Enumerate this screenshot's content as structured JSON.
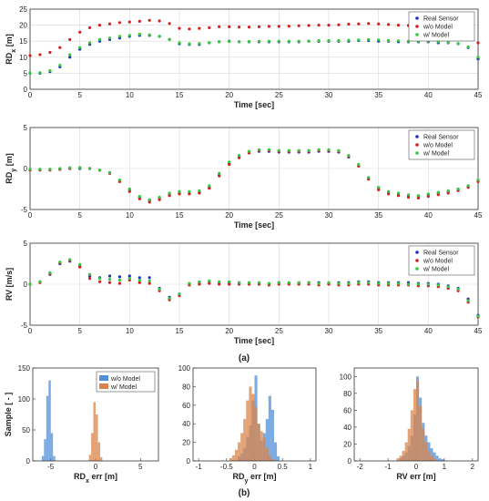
{
  "figure": {
    "label_a": "(a)",
    "label_b": "(b)"
  },
  "colors": {
    "real_sensor": "#1f2fbf",
    "wo_model": "#d21f1f",
    "w_model": "#33c93a",
    "hist_wo_model": "#4f8fd6",
    "hist_w_model": "#d9844a",
    "grid": "#d9d9d9",
    "frame": "#333333"
  },
  "chart_data": [
    {
      "type": "scatter",
      "xlabel": "Time [sec]",
      "ylabel": "RDx [m]",
      "ylabel_main": "RD",
      "ylabel_sub": "x",
      "ylabel_unit": " [m]",
      "xlim": [
        0,
        45
      ],
      "ylim": [
        0,
        25
      ],
      "xticks": [
        0,
        5,
        10,
        15,
        20,
        25,
        30,
        35,
        40,
        45
      ],
      "yticks": [
        0,
        5,
        10,
        15,
        20,
        25
      ],
      "grid": true,
      "legend_position": "top-right",
      "x": [
        0,
        1,
        2,
        3,
        4,
        5,
        6,
        7,
        8,
        9,
        10,
        11,
        12,
        13,
        14,
        15,
        16,
        17,
        18,
        19,
        20,
        21,
        22,
        23,
        24,
        25,
        26,
        27,
        28,
        29,
        30,
        31,
        32,
        33,
        34,
        35,
        36,
        37,
        38,
        39,
        40,
        41,
        42,
        43,
        44,
        45
      ],
      "series": [
        {
          "name": "Real Sensor",
          "values": [
            5,
            5,
            5.5,
            7,
            10,
            12.5,
            14,
            15,
            15.5,
            16,
            16.5,
            16.8,
            16.8,
            16.5,
            15.5,
            14.2,
            14,
            14,
            14.5,
            14.8,
            15,
            14.8,
            14.8,
            14.8,
            14.8,
            14.8,
            14.8,
            14.8,
            15,
            15,
            15,
            15,
            15,
            15.2,
            15.2,
            15,
            15,
            14.8,
            14.8,
            14.8,
            14.8,
            14.5,
            14.5,
            14.2,
            13,
            9.5
          ]
        },
        {
          "name": "w/o Model",
          "values": [
            10.5,
            10.8,
            11.5,
            13,
            15.5,
            17.8,
            19.2,
            20,
            20.4,
            20.8,
            21,
            21.2,
            21.5,
            21.3,
            20.5,
            19,
            18.8,
            19,
            19.2,
            19.5,
            19.5,
            19.4,
            19.4,
            19.5,
            19.6,
            19.6,
            19.7,
            19.8,
            19.9,
            20,
            20,
            20.1,
            20.3,
            20.4,
            20.5,
            20.4,
            20.2,
            20,
            19.9,
            19.8,
            19.7,
            19.6,
            19.4,
            19,
            17.5,
            14.5
          ]
        },
        {
          "name": "w/ Model",
          "values": [
            5,
            5.2,
            5.8,
            7.5,
            10.8,
            13,
            14.5,
            15.5,
            16,
            16.5,
            16.8,
            17.2,
            17,
            16.5,
            15.5,
            14.5,
            14.2,
            14.3,
            14.5,
            14.8,
            14.9,
            14.8,
            14.9,
            15,
            15,
            15,
            15,
            15,
            15,
            15.2,
            15.2,
            15.2,
            15.3,
            15.4,
            15.5,
            15.4,
            15.2,
            15.1,
            15,
            15,
            15,
            14.8,
            14.6,
            14.3,
            13.2,
            10
          ]
        }
      ]
    },
    {
      "type": "scatter",
      "xlabel": "Time [sec]",
      "ylabel": "RDy [m]",
      "ylabel_main": "RD",
      "ylabel_sub": "y",
      "ylabel_unit": " [m]",
      "xlim": [
        0,
        45
      ],
      "ylim": [
        -5,
        5
      ],
      "xticks": [
        0,
        5,
        10,
        15,
        20,
        25,
        30,
        35,
        40,
        45
      ],
      "yticks": [
        -5,
        0,
        5
      ],
      "grid": true,
      "legend_position": "top-right",
      "x": [
        0,
        1,
        2,
        3,
        4,
        5,
        6,
        7,
        8,
        9,
        10,
        11,
        12,
        13,
        14,
        15,
        16,
        17,
        18,
        19,
        20,
        21,
        22,
        23,
        24,
        25,
        26,
        27,
        28,
        29,
        30,
        31,
        32,
        33,
        34,
        35,
        36,
        37,
        38,
        39,
        40,
        41,
        42,
        43,
        44,
        45
      ],
      "series": [
        {
          "name": "Real Sensor",
          "values": [
            -0.1,
            -0.1,
            -0.1,
            -0.1,
            0,
            0,
            0,
            -0.2,
            -0.5,
            -1.5,
            -2.6,
            -3.5,
            -3.9,
            -3.6,
            -3.1,
            -2.9,
            -3,
            -2.9,
            -2.3,
            -0.8,
            0.6,
            1.4,
            1.9,
            2.1,
            2.1,
            2,
            2,
            2,
            2,
            2.1,
            2.1,
            2,
            1.4,
            0.3,
            -1.2,
            -2.4,
            -2.9,
            -3.1,
            -3.3,
            -3.4,
            -3.2,
            -3,
            -2.8,
            -2.6,
            -2.2,
            -1.5
          ]
        },
        {
          "name": "w/o Model",
          "values": [
            -0.2,
            -0.2,
            -0.2,
            -0.1,
            0,
            0.1,
            0,
            -0.2,
            -0.6,
            -1.6,
            -2.8,
            -3.7,
            -4.1,
            -3.8,
            -3.3,
            -3.1,
            -3.1,
            -3,
            -2.4,
            -0.9,
            0.5,
            1.3,
            1.9,
            2.2,
            2.2,
            2.1,
            2.1,
            2.1,
            2.1,
            2.2,
            2.2,
            2.1,
            1.5,
            0.3,
            -1.3,
            -2.6,
            -3.1,
            -3.3,
            -3.5,
            -3.6,
            -3.4,
            -3.2,
            -3,
            -2.7,
            -2.3,
            -1.6
          ]
        },
        {
          "name": "w/ Model",
          "values": [
            -0.1,
            -0.1,
            -0.1,
            0,
            0.1,
            0.1,
            0,
            -0.2,
            -0.5,
            -1.4,
            -2.5,
            -3.4,
            -3.8,
            -3.5,
            -3,
            -2.8,
            -2.8,
            -2.7,
            -2.1,
            -0.6,
            0.8,
            1.6,
            2.1,
            2.3,
            2.3,
            2.2,
            2.2,
            2.2,
            2.2,
            2.3,
            2.3,
            2.2,
            1.6,
            0.5,
            -1.1,
            -2.3,
            -2.8,
            -3,
            -3.2,
            -3.3,
            -3.1,
            -2.9,
            -2.7,
            -2.5,
            -2.1,
            -1.4
          ]
        }
      ]
    },
    {
      "type": "scatter",
      "xlabel": "Time [sec]",
      "ylabel": "RV [m/s]",
      "xlim": [
        0,
        45
      ],
      "ylim": [
        -5,
        5
      ],
      "xticks": [
        0,
        5,
        10,
        15,
        20,
        25,
        30,
        35,
        40,
        45
      ],
      "yticks": [
        -5,
        0,
        5
      ],
      "grid": true,
      "legend_position": "top-right",
      "x": [
        0,
        1,
        2,
        3,
        4,
        5,
        6,
        7,
        8,
        9,
        10,
        11,
        12,
        13,
        14,
        15,
        16,
        17,
        18,
        19,
        20,
        21,
        22,
        23,
        24,
        25,
        26,
        27,
        28,
        29,
        30,
        31,
        32,
        33,
        34,
        35,
        36,
        37,
        38,
        39,
        40,
        41,
        42,
        43,
        44,
        45
      ],
      "series": [
        {
          "name": "Real Sensor",
          "values": [
            0,
            0.3,
            1.2,
            2.5,
            2.8,
            2.2,
            1,
            0.8,
            1,
            0.9,
            1,
            0.8,
            0.8,
            -0.5,
            -1.6,
            -1.2,
            0,
            0.2,
            0.3,
            0.2,
            0.2,
            0.1,
            0.1,
            0.1,
            0,
            0.2,
            0.1,
            0.1,
            0.2,
            0.2,
            0.1,
            0.2,
            0.2,
            0.3,
            0.3,
            0.2,
            0.2,
            0.2,
            0.2,
            0.1,
            0.1,
            0,
            -0.2,
            -0.5,
            -1.8,
            -3.8
          ]
        },
        {
          "name": "w/o Model",
          "values": [
            0,
            0.2,
            1.3,
            2.6,
            2.9,
            2.1,
            0.7,
            0.3,
            0.2,
            0.1,
            0.5,
            0.2,
            0.1,
            -0.8,
            -1.9,
            -1.4,
            -0.1,
            0,
            0.1,
            0,
            0,
            0,
            0,
            0,
            -0.1,
            0,
            0,
            0,
            0,
            -0.1,
            0,
            -0.1,
            -0.1,
            0,
            0,
            -0.1,
            -0.1,
            -0.1,
            -0.1,
            -0.2,
            -0.2,
            -0.3,
            -0.5,
            -0.8,
            -2.2,
            -4
          ]
        },
        {
          "name": "w/ Model",
          "values": [
            0,
            0.3,
            1.4,
            2.7,
            3,
            2.4,
            1.2,
            0.7,
            0.6,
            0.5,
            0.7,
            0.5,
            0.4,
            -0.6,
            -1.7,
            -1.2,
            0.1,
            0.3,
            0.4,
            0.3,
            0.3,
            0.2,
            0.2,
            0.2,
            0.1,
            0.2,
            0.2,
            0.2,
            0.2,
            0.1,
            0.2,
            0.1,
            0.1,
            0.2,
            0.2,
            0.1,
            0.1,
            0.1,
            0,
            0,
            0,
            -0.1,
            -0.3,
            -0.6,
            -2,
            -3.9
          ]
        }
      ]
    },
    {
      "type": "bar",
      "subtype": "histogram",
      "xlabel": "RDx err [m]",
      "xlabel_main": "RD",
      "xlabel_sub": "x",
      "xlabel_unit": " err [m]",
      "ylabel": "Sample [ - ]",
      "xlim": [
        -7,
        7
      ],
      "ylim": [
        0,
        150
      ],
      "xticks": [
        -5,
        0,
        5
      ],
      "yticks": [
        0,
        50,
        100,
        150
      ],
      "legend_position": "top-right",
      "bin_width": 0.25,
      "series": [
        {
          "name": "w/o Model",
          "bin_starts": [
            -6.0,
            -5.75,
            -5.5,
            -5.25,
            -5.0,
            -4.75
          ],
          "values": [
            8,
            35,
            105,
            130,
            45,
            8
          ]
        },
        {
          "name": "w/ Model",
          "bin_starts": [
            -0.75,
            -0.5,
            -0.25,
            0.0,
            0.25,
            0.5
          ],
          "values": [
            10,
            45,
            95,
            75,
            30,
            6
          ]
        }
      ]
    },
    {
      "type": "bar",
      "subtype": "histogram",
      "xlabel": "RDy err [m]",
      "xlabel_main": "RD",
      "xlabel_sub": "y",
      "xlabel_unit": " err [m]",
      "xlim": [
        -1.1,
        1.1
      ],
      "ylim": [
        0,
        100
      ],
      "xticks": [
        -1,
        -0.5,
        0,
        0.5,
        1
      ],
      "yticks": [
        0,
        20,
        40,
        60,
        80,
        100
      ],
      "bin_width": 0.05,
      "series": [
        {
          "name": "w/o Model",
          "bin_starts": [
            -0.3,
            -0.25,
            -0.2,
            -0.15,
            -0.1,
            -0.05,
            0.0,
            0.05,
            0.1,
            0.15,
            0.2,
            0.25,
            0.3,
            0.35,
            0.4
          ],
          "values": [
            5,
            8,
            14,
            26,
            38,
            65,
            92,
            40,
            22,
            30,
            45,
            70,
            55,
            20,
            5
          ]
        },
        {
          "name": "w/ Model",
          "bin_starts": [
            -0.45,
            -0.4,
            -0.35,
            -0.3,
            -0.25,
            -0.2,
            -0.15,
            -0.1,
            -0.05,
            0.0,
            0.05,
            0.1,
            0.15,
            0.2,
            0.25,
            0.3
          ],
          "values": [
            3,
            6,
            12,
            20,
            30,
            45,
            65,
            80,
            72,
            58,
            40,
            32,
            25,
            14,
            6,
            2
          ]
        }
      ]
    },
    {
      "type": "bar",
      "subtype": "histogram",
      "xlabel": "RV err [m]",
      "xlim": [
        -2.2,
        2.2
      ],
      "ylim": [
        0,
        110
      ],
      "xticks": [
        -2,
        -1,
        0,
        1,
        2
      ],
      "yticks": [
        0,
        20,
        40,
        60,
        80,
        100
      ],
      "bin_width": 0.1,
      "series": [
        {
          "name": "w/o Model",
          "bin_starts": [
            -0.6,
            -0.5,
            -0.4,
            -0.3,
            -0.2,
            -0.1,
            0.0,
            0.1,
            0.2,
            0.3,
            0.4,
            0.5,
            0.6,
            0.7,
            0.8,
            0.9
          ],
          "values": [
            3,
            6,
            10,
            18,
            30,
            55,
            100,
            75,
            45,
            30,
            22,
            15,
            10,
            6,
            3,
            2
          ]
        },
        {
          "name": "w/ Model",
          "bin_starts": [
            -0.7,
            -0.6,
            -0.5,
            -0.4,
            -0.3,
            -0.2,
            -0.1,
            0.0,
            0.1,
            0.2,
            0.3,
            0.4,
            0.5,
            0.6
          ],
          "values": [
            3,
            6,
            12,
            22,
            38,
            60,
            85,
            95,
            65,
            38,
            22,
            12,
            6,
            3
          ]
        }
      ]
    }
  ]
}
